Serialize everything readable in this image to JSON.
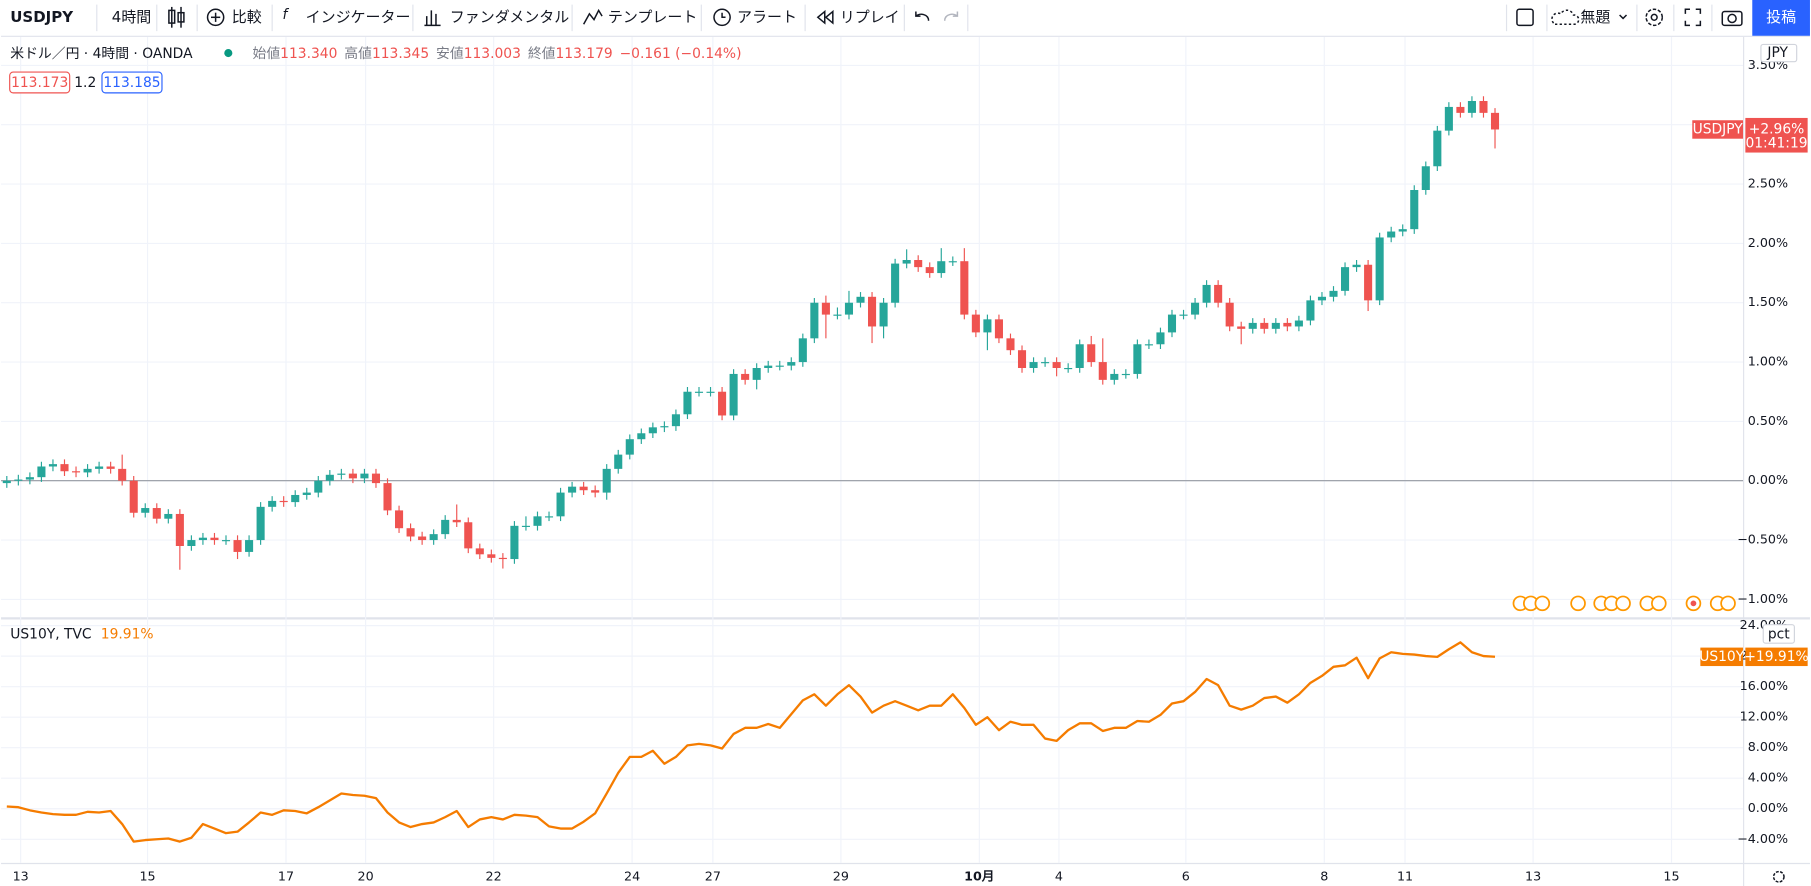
{
  "toolbar": {
    "symbol": "USDJPY",
    "interval": "4時間",
    "compare": "比較",
    "indicators": "インジケーター",
    "fundamentals": "ファンダメンタル",
    "templates": "テンプレート",
    "alert": "アラート",
    "replay": "リプレイ",
    "layout_name": "無題",
    "publish": "投稿"
  },
  "legend": {
    "symbol": "米ドル／円 · 4時間 · OANDA",
    "ohlc": [
      {
        "label": "始値",
        "value": "113.340"
      },
      {
        "label": "高値",
        "value": "113.345"
      },
      {
        "label": "安値",
        "value": "113.003"
      },
      {
        "label": "終値",
        "value": "113.179"
      }
    ],
    "change": "−0.161 (−0.14%)",
    "bid": "113.173",
    "spread": "1.2",
    "ask": "113.185"
  },
  "chart_data": [
    {
      "type": "candlestick",
      "unit_button": "JPY",
      "up_color": "#26a69a",
      "down_color": "#ef5350",
      "grid": true,
      "xlim": [
        -0.5,
        150.5
      ],
      "ylim": [
        -1.15,
        3.74
      ],
      "yticks": [
        {
          "value": -1,
          "label": "−1.00%"
        },
        {
          "value": -0.5,
          "label": "−0.50%"
        },
        {
          "value": 0,
          "label": "0.00%"
        },
        {
          "value": 0.5,
          "label": "0.50%"
        },
        {
          "value": 1,
          "label": "1.00%"
        },
        {
          "value": 1.5,
          "label": "1.50%"
        },
        {
          "value": 2,
          "label": "2.00%"
        },
        {
          "value": 2.5,
          "label": "2.50%"
        },
        {
          "value": 3,
          "label": "3.00%"
        },
        {
          "value": 3.5,
          "label": "3.50%"
        }
      ],
      "open": [
        -0.02,
        0.0,
        0.01,
        0.03,
        0.12,
        0.14,
        0.08,
        0.07,
        0.1,
        0.12,
        0.1,
        0.0,
        -0.27,
        -0.23,
        -0.32,
        -0.28,
        -0.55,
        -0.5,
        -0.48,
        -0.5,
        -0.5,
        -0.6,
        -0.5,
        -0.22,
        -0.17,
        -0.18,
        -0.12,
        -0.1,
        0.0,
        0.05,
        0.06,
        0.02,
        0.06,
        -0.02,
        -0.25,
        -0.4,
        -0.47,
        -0.5,
        -0.45,
        -0.33,
        -0.35,
        -0.57,
        -0.62,
        -0.65,
        -0.66,
        -0.38,
        -0.38,
        -0.3,
        -0.3,
        -0.1,
        -0.05,
        -0.08,
        -0.1,
        0.1,
        0.22,
        0.35,
        0.4,
        0.45,
        0.46,
        0.56,
        0.75,
        0.75,
        0.75,
        0.55,
        0.9,
        0.85,
        0.95,
        0.97,
        0.97,
        1.0,
        1.2,
        1.5,
        1.4,
        1.4,
        1.5,
        1.55,
        1.3,
        1.5,
        1.83,
        1.86,
        1.8,
        1.75,
        1.85,
        1.85,
        1.4,
        1.25,
        1.36,
        1.2,
        1.1,
        0.95,
        1.0,
        1.0,
        0.95,
        0.95,
        1.15,
        1.0,
        0.85,
        0.9,
        0.9,
        1.15,
        1.15,
        1.25,
        1.4,
        1.4,
        1.5,
        1.65,
        1.5,
        1.3,
        1.28,
        1.33,
        1.28,
        1.33,
        1.3,
        1.35,
        1.52,
        1.55,
        1.6,
        1.8,
        1.82,
        1.52,
        2.05,
        2.1,
        2.12,
        2.45,
        2.65,
        2.95,
        3.15,
        3.1,
        3.2,
        3.1
      ],
      "high": [
        0.04,
        0.05,
        0.07,
        0.16,
        0.18,
        0.18,
        0.12,
        0.14,
        0.16,
        0.16,
        0.22,
        0.04,
        -0.19,
        -0.19,
        -0.24,
        -0.24,
        -0.46,
        -0.44,
        -0.44,
        -0.46,
        -0.46,
        -0.46,
        -0.18,
        -0.13,
        -0.13,
        -0.08,
        -0.06,
        0.04,
        0.09,
        0.1,
        0.1,
        0.1,
        0.1,
        0.02,
        -0.21,
        -0.36,
        -0.43,
        -0.41,
        -0.29,
        -0.2,
        -0.31,
        -0.53,
        -0.58,
        -0.61,
        -0.34,
        -0.3,
        -0.26,
        -0.26,
        -0.06,
        -0.01,
        -0.01,
        -0.04,
        0.14,
        0.26,
        0.39,
        0.44,
        0.49,
        0.5,
        0.6,
        0.79,
        0.79,
        0.79,
        0.79,
        0.94,
        0.94,
        0.99,
        1.01,
        1.01,
        1.04,
        1.24,
        1.54,
        1.56,
        1.46,
        1.6,
        1.59,
        1.59,
        1.54,
        1.87,
        1.95,
        1.9,
        1.84,
        1.96,
        1.89,
        1.96,
        1.44,
        1.4,
        1.4,
        1.24,
        1.14,
        1.04,
        1.04,
        1.04,
        0.99,
        1.19,
        1.22,
        1.2,
        0.94,
        0.94,
        1.19,
        1.19,
        1.29,
        1.44,
        1.44,
        1.54,
        1.69,
        1.69,
        1.54,
        1.34,
        1.37,
        1.37,
        1.37,
        1.37,
        1.39,
        1.56,
        1.59,
        1.64,
        1.84,
        1.86,
        1.86,
        2.09,
        2.14,
        2.16,
        2.49,
        2.69,
        2.99,
        3.19,
        3.19,
        3.24,
        3.24,
        3.14
      ],
      "low": [
        -0.06,
        -0.04,
        -0.03,
        -0.01,
        0.08,
        0.04,
        0.03,
        0.03,
        0.06,
        0.06,
        -0.04,
        -0.31,
        -0.31,
        -0.36,
        -0.36,
        -0.75,
        -0.59,
        -0.54,
        -0.54,
        -0.54,
        -0.66,
        -0.64,
        -0.54,
        -0.26,
        -0.22,
        -0.22,
        -0.16,
        -0.14,
        -0.04,
        0.01,
        -0.02,
        -0.02,
        -0.06,
        -0.29,
        -0.44,
        -0.51,
        -0.54,
        -0.54,
        -0.49,
        -0.39,
        -0.61,
        -0.66,
        -0.69,
        -0.74,
        -0.7,
        -0.42,
        -0.42,
        -0.34,
        -0.34,
        -0.14,
        -0.12,
        -0.14,
        -0.16,
        0.06,
        0.18,
        0.31,
        0.36,
        0.41,
        0.42,
        0.52,
        0.71,
        0.71,
        0.51,
        0.51,
        0.81,
        0.77,
        0.91,
        0.93,
        0.93,
        0.96,
        1.16,
        1.2,
        1.36,
        1.36,
        1.46,
        1.16,
        1.2,
        1.46,
        1.79,
        1.76,
        1.71,
        1.71,
        1.81,
        1.36,
        1.21,
        1.1,
        1.16,
        1.06,
        0.91,
        0.91,
        0.96,
        0.88,
        0.91,
        0.91,
        0.96,
        0.81,
        0.81,
        0.86,
        0.86,
        1.11,
        1.11,
        1.21,
        1.36,
        1.36,
        1.46,
        1.46,
        1.26,
        1.15,
        1.24,
        1.24,
        1.24,
        1.26,
        1.26,
        1.31,
        1.48,
        1.51,
        1.56,
        1.76,
        1.43,
        1.48,
        2.01,
        2.06,
        2.08,
        2.41,
        2.61,
        2.91,
        3.06,
        3.06,
        3.06,
        2.8
      ],
      "close": [
        0.0,
        0.01,
        0.03,
        0.12,
        0.14,
        0.08,
        0.07,
        0.1,
        0.12,
        0.1,
        0.0,
        -0.27,
        -0.23,
        -0.32,
        -0.28,
        -0.55,
        -0.5,
        -0.48,
        -0.5,
        -0.5,
        -0.6,
        -0.5,
        -0.22,
        -0.17,
        -0.18,
        -0.12,
        -0.1,
        0.0,
        0.05,
        0.06,
        0.02,
        0.06,
        -0.02,
        -0.25,
        -0.4,
        -0.47,
        -0.5,
        -0.45,
        -0.33,
        -0.35,
        -0.57,
        -0.62,
        -0.65,
        -0.66,
        -0.38,
        -0.38,
        -0.3,
        -0.3,
        -0.1,
        -0.05,
        -0.08,
        -0.1,
        0.1,
        0.22,
        0.35,
        0.4,
        0.45,
        0.46,
        0.56,
        0.75,
        0.75,
        0.75,
        0.55,
        0.9,
        0.85,
        0.95,
        0.97,
        0.97,
        1.0,
        1.2,
        1.5,
        1.4,
        1.4,
        1.5,
        1.55,
        1.3,
        1.5,
        1.83,
        1.86,
        1.8,
        1.75,
        1.85,
        1.85,
        1.4,
        1.25,
        1.36,
        1.2,
        1.1,
        0.95,
        1.0,
        1.0,
        0.95,
        0.95,
        1.15,
        1.0,
        0.85,
        0.9,
        0.9,
        1.15,
        1.15,
        1.25,
        1.4,
        1.4,
        1.5,
        1.65,
        1.5,
        1.3,
        1.28,
        1.33,
        1.28,
        1.33,
        1.3,
        1.35,
        1.52,
        1.55,
        1.6,
        1.8,
        1.82,
        1.52,
        2.05,
        2.1,
        2.12,
        2.45,
        2.65,
        2.95,
        3.15,
        3.1,
        3.2,
        3.1,
        2.96
      ],
      "badge": {
        "name": "USDJPY",
        "value_label": "+2.96%",
        "countdown": "01:41:19",
        "color": "#ef5350"
      }
    },
    {
      "type": "line",
      "title": "US10Y, TVC",
      "legend_value": "19.91%",
      "unit_button": "pct",
      "color": "#f57c00",
      "grid": true,
      "xlim": [
        -0.5,
        150.5
      ],
      "xticks": [
        {
          "value": 1.2,
          "label": "13"
        },
        {
          "value": 12.2,
          "label": "15"
        },
        {
          "value": 24.2,
          "label": "17"
        },
        {
          "value": 31.1,
          "label": "20"
        },
        {
          "value": 42.2,
          "label": "22"
        },
        {
          "value": 54.2,
          "label": "24"
        },
        {
          "value": 61.2,
          "label": "27"
        },
        {
          "value": 72.3,
          "label": "29"
        },
        {
          "value": 84.3,
          "label": "10月"
        },
        {
          "value": 91.2,
          "label": "4"
        },
        {
          "value": 102.2,
          "label": "6"
        },
        {
          "value": 114.2,
          "label": "8"
        },
        {
          "value": 121.2,
          "label": "11"
        },
        {
          "value": 132.3,
          "label": "13"
        },
        {
          "value": 144.3,
          "label": "15"
        }
      ],
      "ylim": [
        -7.1,
        24.8
      ],
      "yticks": [
        {
          "value": -4,
          "label": "−4.00%"
        },
        {
          "value": 0,
          "label": "0.00%"
        },
        {
          "value": 4,
          "label": "4.00%"
        },
        {
          "value": 8,
          "label": "8.00%"
        },
        {
          "value": 12,
          "label": "12.00%"
        },
        {
          "value": 16,
          "label": "16.00%"
        },
        {
          "value": 20,
          "label": "20.00%"
        },
        {
          "value": 24,
          "label": "24.00%"
        }
      ],
      "values": [
        0.3,
        0.2,
        -0.2,
        -0.5,
        -0.7,
        -0.8,
        -0.8,
        -0.4,
        -0.5,
        -0.3,
        -2.0,
        -4.3,
        -4.1,
        -4.0,
        -3.9,
        -4.3,
        -3.8,
        -2.0,
        -2.6,
        -3.2,
        -3.0,
        -1.8,
        -0.5,
        -0.8,
        -0.2,
        -0.3,
        -0.6,
        0.2,
        1.1,
        2.0,
        1.8,
        1.7,
        1.4,
        -0.5,
        -1.8,
        -2.4,
        -2.0,
        -1.8,
        -1.1,
        -0.3,
        -2.4,
        -1.4,
        -1.1,
        -1.4,
        -0.8,
        -0.9,
        -1.1,
        -2.3,
        -2.6,
        -2.6,
        -1.7,
        -0.6,
        2.0,
        4.7,
        6.8,
        6.8,
        7.6,
        5.9,
        6.8,
        8.3,
        8.5,
        8.3,
        7.9,
        9.8,
        10.6,
        10.6,
        11.1,
        10.6,
        12.4,
        14.2,
        15.0,
        13.5,
        15.0,
        16.2,
        14.7,
        12.6,
        13.5,
        14.1,
        13.5,
        12.9,
        13.5,
        13.5,
        15.0,
        13.2,
        11.0,
        12.0,
        10.3,
        11.4,
        11.0,
        11.0,
        9.2,
        8.9,
        10.3,
        11.2,
        11.2,
        10.2,
        10.6,
        10.6,
        11.5,
        11.4,
        12.3,
        13.8,
        14.1,
        15.3,
        17.0,
        16.2,
        13.5,
        13.0,
        13.5,
        14.5,
        14.7,
        13.9,
        15.0,
        16.5,
        17.4,
        18.6,
        18.8,
        19.8,
        17.1,
        19.7,
        20.5,
        20.3,
        20.2,
        20.0,
        19.9,
        20.9,
        21.8,
        20.5,
        20.0,
        19.91
      ],
      "badge": {
        "name": "US10Y",
        "value_label": "+19.91%",
        "color": "#f57c00"
      }
    }
  ]
}
